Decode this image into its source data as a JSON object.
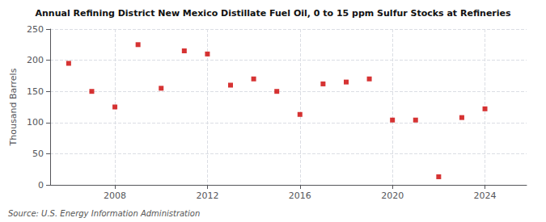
{
  "chart_data": {
    "type": "scatter",
    "title": "Annual Refining District New Mexico Distillate Fuel Oil, 0 to 15 ppm Sulfur Stocks at Refineries",
    "ylabel": "Thousand Barrels",
    "annotation": "Source: U.S. Energy Information Administration",
    "x": [
      2006,
      2007,
      2008,
      2009,
      2010,
      2011,
      2012,
      2013,
      2014,
      2015,
      2016,
      2017,
      2018,
      2019,
      2020,
      2021,
      2022,
      2023,
      2024
    ],
    "values": [
      195,
      150,
      125,
      225,
      155,
      215,
      210,
      160,
      170,
      150,
      113,
      162,
      165,
      170,
      104,
      104,
      13,
      108,
      122
    ],
    "color": "#cc0000",
    "marker": "square",
    "xlim": [
      2005.2,
      2025.8
    ],
    "xticks": [
      2008,
      2012,
      2016,
      2020,
      2024
    ],
    "ylim": [
      0,
      250
    ],
    "yticks": [
      0,
      50,
      100,
      150,
      200,
      250
    ],
    "grid": true
  }
}
